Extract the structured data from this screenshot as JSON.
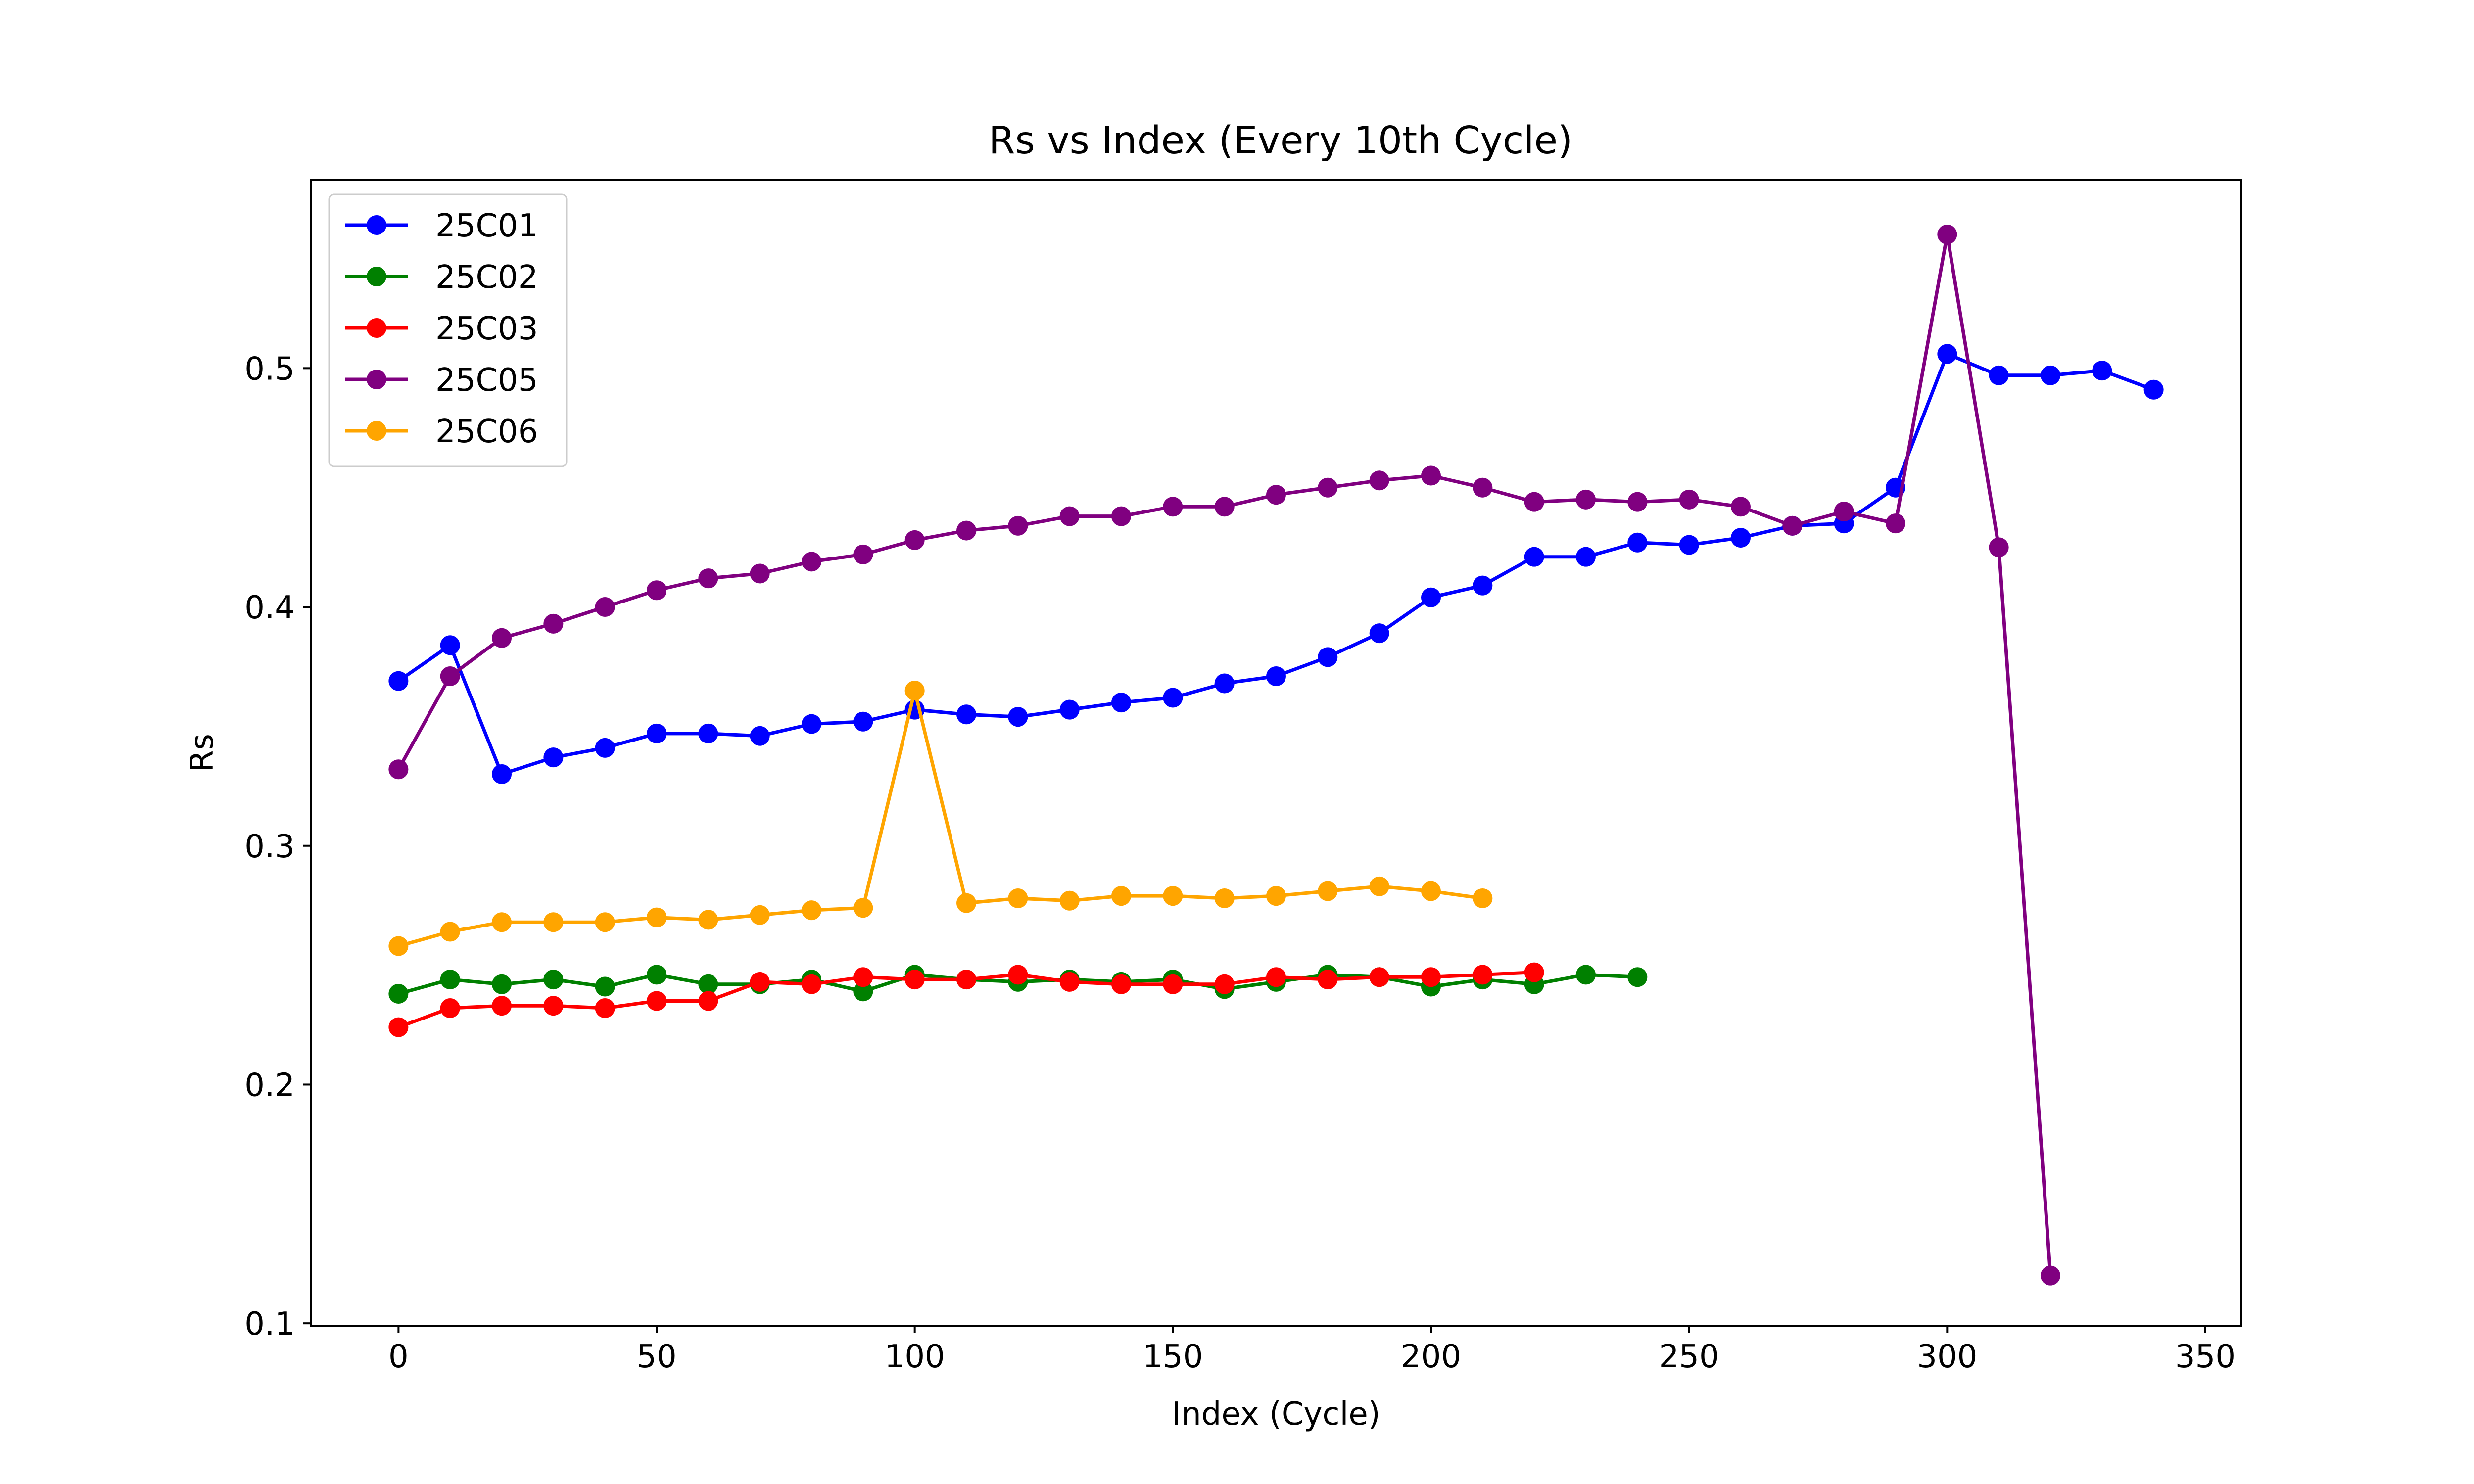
{
  "chart_data": {
    "type": "line",
    "title": "Rs vs Index (Every 10th Cycle)",
    "xlabel": "Index (Cycle)",
    "ylabel": "Rs",
    "xlim": [
      -17,
      357
    ],
    "ylim": [
      0.099,
      0.579
    ],
    "xticks": [
      0,
      50,
      100,
      150,
      200,
      250,
      300,
      350
    ],
    "xtick_labels": [
      "0",
      "50",
      "100",
      "150",
      "200",
      "250",
      "300",
      "350"
    ],
    "yticks": [
      0.1,
      0.2,
      0.3,
      0.4,
      0.5
    ],
    "ytick_labels": [
      "0.1",
      "0.2",
      "0.3",
      "0.4",
      "0.5"
    ],
    "grid": false,
    "legend_position": "top-left",
    "series": [
      {
        "name": "25C01",
        "color": "#0000ff",
        "x": [
          0,
          10,
          20,
          30,
          40,
          50,
          60,
          70,
          80,
          90,
          100,
          110,
          120,
          130,
          140,
          150,
          160,
          170,
          180,
          190,
          200,
          210,
          220,
          230,
          240,
          250,
          260,
          270,
          280,
          290,
          300,
          310,
          320,
          330,
          340
        ],
        "y": [
          0.369,
          0.384,
          0.33,
          0.337,
          0.341,
          0.347,
          0.347,
          0.346,
          0.351,
          0.352,
          0.357,
          0.355,
          0.354,
          0.357,
          0.36,
          0.362,
          0.368,
          0.371,
          0.379,
          0.389,
          0.404,
          0.409,
          0.421,
          0.421,
          0.427,
          0.426,
          0.429,
          0.434,
          0.435,
          0.45,
          0.506,
          0.497,
          0.497,
          0.499,
          0.491
        ]
      },
      {
        "name": "25C02",
        "color": "#008000",
        "x": [
          0,
          10,
          20,
          30,
          40,
          50,
          60,
          70,
          80,
          90,
          100,
          110,
          120,
          130,
          140,
          150,
          160,
          170,
          180,
          190,
          200,
          210,
          220,
          230,
          240
        ],
        "y": [
          0.238,
          0.244,
          0.242,
          0.244,
          0.241,
          0.246,
          0.242,
          0.242,
          0.244,
          0.239,
          0.246,
          0.244,
          0.243,
          0.244,
          0.243,
          0.244,
          0.24,
          0.243,
          0.246,
          0.245,
          0.241,
          0.244,
          0.242,
          0.246,
          0.245
        ]
      },
      {
        "name": "25C03",
        "color": "#ff0000",
        "x": [
          0,
          10,
          20,
          30,
          40,
          50,
          60,
          70,
          80,
          90,
          100,
          110,
          120,
          130,
          140,
          150,
          160,
          170,
          180,
          190,
          200,
          210,
          220
        ],
        "y": [
          0.224,
          0.232,
          0.233,
          0.233,
          0.232,
          0.235,
          0.235,
          0.243,
          0.242,
          0.245,
          0.244,
          0.244,
          0.246,
          0.243,
          0.242,
          0.242,
          0.242,
          0.245,
          0.244,
          0.245,
          0.245,
          0.246,
          0.247
        ]
      },
      {
        "name": "25C05",
        "color": "#800080",
        "x": [
          0,
          10,
          20,
          30,
          40,
          50,
          60,
          70,
          80,
          90,
          100,
          110,
          120,
          130,
          140,
          150,
          160,
          170,
          180,
          190,
          200,
          210,
          220,
          230,
          240,
          250,
          260,
          270,
          280,
          290,
          300,
          310,
          320
        ],
        "y": [
          0.332,
          0.371,
          0.387,
          0.393,
          0.4,
          0.407,
          0.412,
          0.414,
          0.419,
          0.422,
          0.428,
          0.432,
          0.434,
          0.438,
          0.438,
          0.442,
          0.442,
          0.447,
          0.45,
          0.453,
          0.455,
          0.45,
          0.444,
          0.445,
          0.444,
          0.445,
          0.442,
          0.434,
          0.44,
          0.435,
          0.556,
          0.425,
          0.12
        ]
      },
      {
        "name": "25C06",
        "color": "#ffa500",
        "x": [
          0,
          10,
          20,
          30,
          40,
          50,
          60,
          70,
          80,
          90,
          100,
          110,
          120,
          130,
          140,
          150,
          160,
          170,
          180,
          190,
          200,
          210
        ],
        "y": [
          0.258,
          0.264,
          0.268,
          0.268,
          0.268,
          0.27,
          0.269,
          0.271,
          0.273,
          0.274,
          0.365,
          0.276,
          0.278,
          0.277,
          0.279,
          0.279,
          0.278,
          0.279,
          0.281,
          0.283,
          0.281,
          0.278
        ]
      }
    ]
  }
}
